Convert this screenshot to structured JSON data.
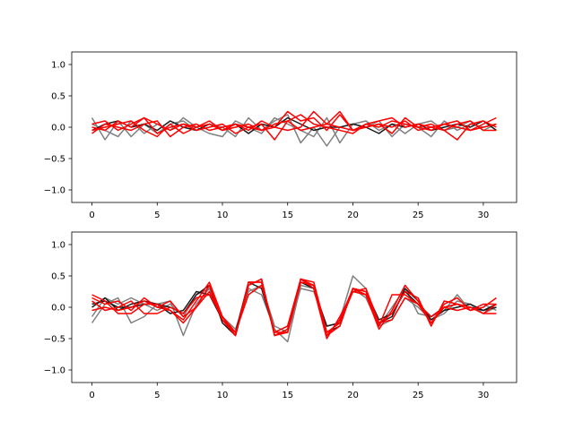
{
  "chart_data": [
    {
      "type": "line",
      "title": "",
      "xlabel": "",
      "ylabel": "",
      "xlim": [
        -1.55,
        32.55
      ],
      "ylim": [
        -1.2,
        1.2
      ],
      "xticks": [
        0,
        5,
        10,
        15,
        20,
        25,
        30
      ],
      "yticks": [
        -1.0,
        -0.5,
        0.0,
        0.5,
        1.0
      ],
      "xtick_labels": [
        "0",
        "5",
        "10",
        "15",
        "20",
        "25",
        "30"
      ],
      "ytick_labels": [
        "−1.0",
        "−0.5",
        "0.0",
        "0.5",
        "1.0"
      ],
      "grid": false,
      "x": [
        0,
        1,
        2,
        3,
        4,
        5,
        6,
        7,
        8,
        9,
        10,
        11,
        12,
        13,
        14,
        15,
        16,
        17,
        18,
        19,
        20,
        21,
        22,
        23,
        24,
        25,
        26,
        27,
        28,
        29,
        30,
        31
      ],
      "series": [
        {
          "color": "#7f7f7f",
          "values": [
            0.15,
            -0.2,
            0.1,
            -0.15,
            0.05,
            -0.1,
            0.05,
            0.1,
            -0.05,
            0.05,
            0.0,
            -0.15,
            0.15,
            -0.05,
            0.1,
            0.2,
            -0.25,
            0.0,
            -0.3,
            0.0,
            0.05,
            0.1,
            -0.05,
            0.05,
            -0.1,
            0.05,
            0.1,
            -0.05,
            0.0,
            0.1,
            -0.05,
            0.05
          ]
        },
        {
          "color": "#7f7f7f",
          "values": [
            0.05,
            -0.05,
            -0.15,
            0.1,
            -0.1,
            0.05,
            -0.05,
            0.15,
            0.0,
            -0.1,
            -0.15,
            0.1,
            0.0,
            -0.1,
            0.15,
            0.05,
            -0.05,
            -0.15,
            0.15,
            -0.25,
            0.05,
            0.0,
            0.1,
            -0.15,
            0.05,
            0.0,
            -0.15,
            0.1,
            -0.05,
            0.05,
            0.0,
            0.05
          ]
        },
        {
          "color": "#1a1a1a",
          "values": [
            -0.05,
            0.05,
            0.1,
            0.0,
            0.05,
            -0.05,
            0.1,
            0.0,
            -0.05,
            0.05,
            -0.05,
            0.05,
            -0.1,
            0.05,
            0.0,
            0.15,
            0.05,
            -0.05,
            0.0,
            0.0,
            0.05,
            0.0,
            -0.1,
            0.05,
            0.0,
            0.05,
            -0.05,
            0.0,
            0.05,
            0.0,
            0.1,
            -0.05
          ]
        },
        {
          "color": "#ff0000",
          "values": [
            -0.05,
            0.0,
            0.05,
            0.1,
            -0.05,
            -0.15,
            0.05,
            -0.1,
            0.0,
            0.05,
            -0.05,
            0.0,
            0.05,
            -0.05,
            0.0,
            0.25,
            0.1,
            0.15,
            -0.05,
            0.2,
            -0.05,
            0.05,
            0.0,
            0.1,
            0.05,
            0.0,
            -0.05,
            0.05,
            0.0,
            -0.05,
            0.05,
            0.15
          ]
        },
        {
          "color": "#ff0000",
          "values": [
            0.05,
            0.1,
            -0.05,
            0.05,
            0.15,
            -0.1,
            0.0,
            0.05,
            -0.05,
            0.0,
            0.05,
            -0.1,
            0.0,
            0.05,
            -0.2,
            0.1,
            0.2,
            0.05,
            0.0,
            -0.05,
            -0.1,
            0.05,
            0.1,
            0.15,
            0.0,
            0.05,
            0.0,
            -0.05,
            -0.2,
            0.05,
            0.1,
            0.0
          ]
        },
        {
          "color": "#ff0000",
          "values": [
            -0.1,
            0.05,
            0.0,
            -0.05,
            0.05,
            0.1,
            -0.15,
            0.0,
            0.05,
            -0.05,
            0.0,
            0.05,
            -0.05,
            0.1,
            0.0,
            -0.05,
            0.0,
            0.25,
            0.05,
            0.0,
            -0.05,
            0.0,
            0.05,
            0.0,
            0.1,
            -0.05,
            0.0,
            0.05,
            0.1,
            -0.05,
            0.0,
            0.05
          ]
        },
        {
          "color": "#ff0000",
          "values": [
            0.0,
            -0.05,
            0.1,
            0.0,
            0.15,
            0.05,
            -0.05,
            0.05,
            0.0,
            0.1,
            -0.05,
            0.05,
            0.0,
            -0.05,
            0.05,
            0.1,
            -0.05,
            0.0,
            0.05,
            0.25,
            -0.05,
            0.0,
            0.05,
            -0.1,
            0.15,
            0.0,
            0.05,
            -0.05,
            0.05,
            0.1,
            -0.05,
            -0.05
          ]
        }
      ]
    },
    {
      "type": "line",
      "title": "",
      "xlabel": "",
      "ylabel": "",
      "xlim": [
        -1.55,
        32.55
      ],
      "ylim": [
        -1.2,
        1.2
      ],
      "xticks": [
        0,
        5,
        10,
        15,
        20,
        25,
        30
      ],
      "yticks": [
        -1.0,
        -0.5,
        0.0,
        0.5,
        1.0
      ],
      "xtick_labels": [
        "0",
        "5",
        "10",
        "15",
        "20",
        "25",
        "30"
      ],
      "ytick_labels": [
        "−1.0",
        "−0.5",
        "0.0",
        "0.5",
        "1.0"
      ],
      "grid": false,
      "x": [
        0,
        1,
        2,
        3,
        4,
        5,
        6,
        7,
        8,
        9,
        10,
        11,
        12,
        13,
        14,
        15,
        16,
        17,
        18,
        19,
        20,
        21,
        22,
        23,
        24,
        25,
        26,
        27,
        28,
        29,
        30,
        31
      ],
      "series": [
        {
          "color": "#7f7f7f",
          "values": [
            -0.25,
            0.05,
            0.15,
            -0.25,
            -0.15,
            0.05,
            0.1,
            -0.45,
            0.05,
            0.3,
            -0.2,
            -0.45,
            0.3,
            0.2,
            -0.35,
            -0.55,
            0.35,
            0.3,
            -0.45,
            -0.2,
            0.5,
            0.3,
            -0.3,
            0.0,
            0.3,
            -0.1,
            -0.15,
            -0.05,
            0.2,
            -0.05,
            0.05,
            -0.05
          ]
        },
        {
          "color": "#7f7f7f",
          "values": [
            -0.15,
            0.15,
            0.05,
            0.15,
            0.05,
            -0.05,
            0.05,
            -0.15,
            0.2,
            0.3,
            -0.15,
            -0.35,
            0.25,
            0.35,
            -0.3,
            -0.4,
            0.3,
            0.25,
            -0.3,
            -0.25,
            0.3,
            0.15,
            -0.3,
            -0.2,
            0.15,
            0.0,
            -0.2,
            -0.1,
            0.1,
            0.05,
            -0.1,
            0.0
          ]
        },
        {
          "color": "#1a1a1a",
          "values": [
            0.0,
            0.15,
            -0.05,
            0.05,
            0.1,
            0.05,
            -0.1,
            -0.05,
            0.25,
            0.2,
            -0.2,
            -0.4,
            0.4,
            0.3,
            -0.4,
            -0.3,
            0.4,
            0.3,
            -0.3,
            -0.25,
            0.3,
            0.25,
            -0.2,
            -0.1,
            0.25,
            0.05,
            -0.15,
            0.0,
            0.05,
            0.0,
            -0.05,
            0.05
          ]
        },
        {
          "color": "#1a1a1a",
          "values": [
            0.05,
            0.1,
            0.0,
            0.0,
            0.05,
            0.05,
            0.0,
            -0.1,
            0.2,
            0.35,
            -0.25,
            -0.45,
            0.35,
            0.45,
            -0.45,
            -0.35,
            0.4,
            0.35,
            -0.4,
            -0.3,
            0.3,
            0.2,
            -0.25,
            -0.15,
            0.3,
            0.1,
            -0.2,
            -0.05,
            0.0,
            0.05,
            -0.05,
            0.0
          ]
        },
        {
          "color": "#ff0000",
          "values": [
            0.2,
            0.1,
            -0.1,
            -0.1,
            0.05,
            0.05,
            -0.05,
            -0.25,
            0.0,
            0.35,
            -0.2,
            -0.45,
            0.4,
            0.4,
            -0.45,
            -0.35,
            0.45,
            0.35,
            -0.45,
            -0.3,
            0.3,
            0.2,
            -0.35,
            -0.05,
            0.35,
            0.1,
            -0.25,
            0.05,
            0.15,
            -0.05,
            0.0,
            0.15
          ]
        },
        {
          "color": "#ff0000",
          "values": [
            -0.05,
            0.0,
            -0.05,
            0.0,
            0.1,
            0.0,
            -0.05,
            -0.2,
            0.1,
            0.4,
            -0.15,
            -0.45,
            0.35,
            0.45,
            -0.45,
            -0.4,
            0.4,
            0.35,
            -0.45,
            -0.2,
            0.3,
            0.25,
            -0.3,
            0.2,
            0.2,
            0.05,
            -0.15,
            0.0,
            0.05,
            -0.05,
            0.05,
            0.05
          ]
        },
        {
          "color": "#ff0000",
          "values": [
            0.15,
            0.05,
            0.1,
            -0.05,
            0.15,
            0.0,
            0.1,
            -0.15,
            0.0,
            0.25,
            -0.2,
            -0.45,
            0.4,
            0.4,
            -0.4,
            -0.4,
            0.45,
            0.3,
            -0.5,
            -0.15,
            0.25,
            0.2,
            -0.25,
            -0.1,
            0.25,
            0.15,
            -0.3,
            0.1,
            0.05,
            0.0,
            -0.1,
            0.05
          ]
        },
        {
          "color": "#ff0000",
          "values": [
            0.1,
            -0.05,
            0.0,
            0.1,
            -0.1,
            -0.1,
            0.0,
            -0.1,
            0.15,
            0.2,
            -0.15,
            -0.4,
            0.2,
            0.35,
            -0.4,
            -0.3,
            0.45,
            0.4,
            -0.4,
            -0.25,
            0.25,
            0.3,
            -0.25,
            -0.2,
            0.15,
            0.05,
            -0.25,
            0.0,
            -0.05,
            0.0,
            -0.1,
            -0.1
          ]
        }
      ]
    }
  ]
}
